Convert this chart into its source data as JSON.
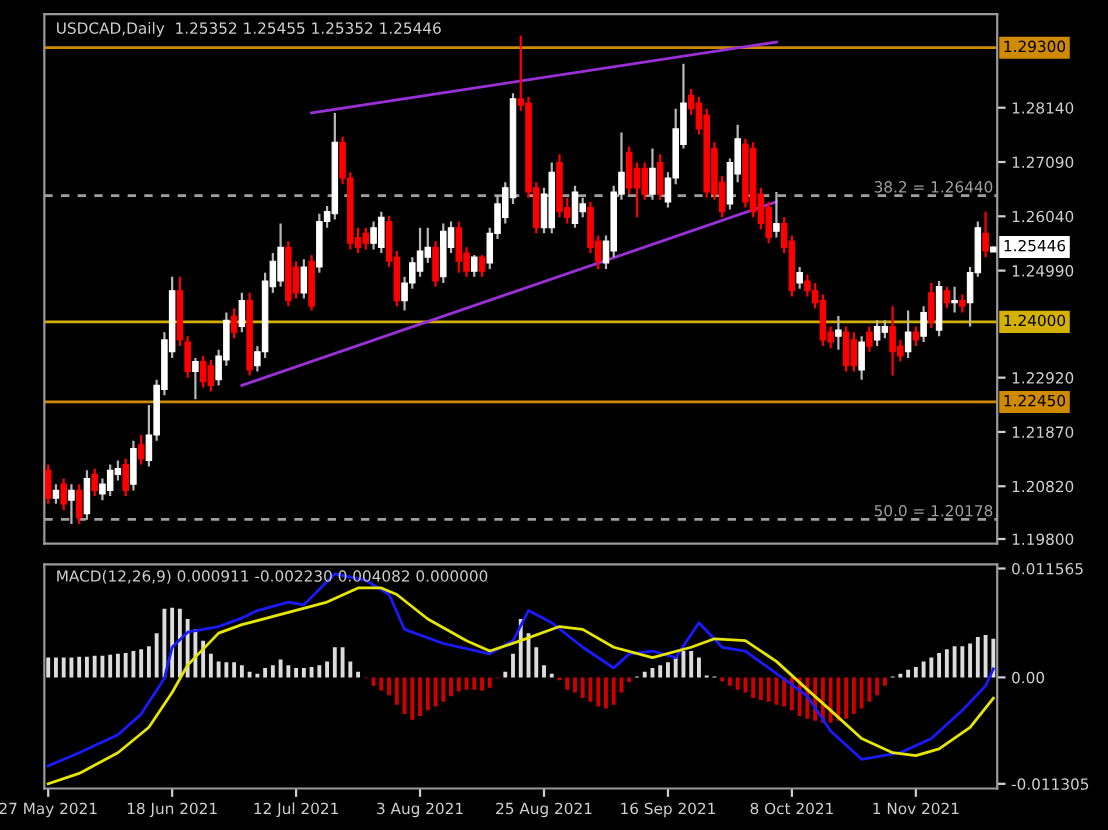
{
  "chart_data": [
    {
      "type": "candlestick",
      "title": "USDCAD,Daily  1.25352 1.25455 1.25352 1.25446",
      "categories": [
        null,
        null,
        null,
        null,
        null,
        null,
        null,
        null,
        null,
        null,
        null,
        null,
        null,
        null,
        null,
        null,
        null,
        null,
        null,
        null,
        null,
        null,
        null,
        null,
        null,
        null,
        null,
        null,
        null,
        null,
        null,
        null,
        null,
        null,
        null,
        null,
        null,
        null,
        null,
        null,
        null,
        null,
        null,
        null,
        null,
        null,
        null,
        null,
        null,
        null,
        null,
        null,
        null,
        null,
        null,
        null,
        null,
        null,
        null,
        null,
        null,
        null,
        null,
        null,
        null,
        null,
        null,
        null,
        null,
        null,
        null,
        null,
        null,
        null,
        null,
        null,
        null,
        null,
        null,
        null,
        null,
        null,
        null,
        null,
        null,
        null,
        null,
        null,
        null,
        null,
        null,
        null,
        null,
        null,
        null,
        null,
        null,
        null,
        null,
        null,
        null,
        null,
        null,
        null,
        null,
        null,
        null,
        null,
        null,
        null,
        null,
        null,
        null,
        null,
        null,
        null,
        null,
        null,
        null,
        null,
        null,
        null,
        null
      ],
      "ohlc": [
        [
          1.2113,
          1.2124,
          1.2048,
          1.2059
        ],
        [
          1.2059,
          1.2086,
          1.2048,
          1.2074
        ],
        [
          1.2086,
          1.2097,
          1.2036,
          1.2048
        ],
        [
          1.2055,
          1.2086,
          1.2009,
          1.2074
        ],
        [
          1.2074,
          1.2086,
          1.2009,
          1.2021
        ],
        [
          1.2029,
          1.2113,
          1.2017,
          1.2097
        ],
        [
          1.2105,
          1.2116,
          1.2063,
          1.2074
        ],
        [
          1.2067,
          1.2097,
          1.2055,
          1.2086
        ],
        [
          1.2074,
          1.2124,
          1.2063,
          1.2113
        ],
        [
          1.2105,
          1.2132,
          1.2093,
          1.2116
        ],
        [
          1.2124,
          1.2135,
          1.2063,
          1.2074
        ],
        [
          1.2086,
          1.217,
          1.2074,
          1.2155
        ],
        [
          1.2162,
          1.2181,
          1.2124,
          1.2135
        ],
        [
          1.2132,
          1.2239,
          1.212,
          1.2181
        ],
        [
          1.2181,
          1.2288,
          1.217,
          1.2277
        ],
        [
          1.2269,
          1.238,
          1.2258,
          1.2365
        ],
        [
          1.2342,
          1.2487,
          1.233,
          1.246
        ],
        [
          1.246,
          1.2487,
          1.2353,
          1.2365
        ],
        [
          1.2361,
          1.2372,
          1.2292,
          1.2304
        ],
        [
          1.2304,
          1.233,
          1.225,
          1.2323
        ],
        [
          1.2323,
          1.2334,
          1.2273,
          1.2284
        ],
        [
          1.2315,
          1.2326,
          1.2265,
          1.2277
        ],
        [
          1.2288,
          1.2346,
          1.2277,
          1.2334
        ],
        [
          1.2326,
          1.2418,
          1.2315,
          1.2403
        ],
        [
          1.2411,
          1.2426,
          1.2368,
          1.238
        ],
        [
          1.2391,
          1.2456,
          1.238,
          1.2441
        ],
        [
          1.2441,
          1.2456,
          1.2296,
          1.2307
        ],
        [
          1.2315,
          1.2353,
          1.2304,
          1.2342
        ],
        [
          1.2342,
          1.2495,
          1.233,
          1.2479
        ],
        [
          1.2468,
          1.2533,
          1.2456,
          1.2517
        ],
        [
          1.2479,
          1.259,
          1.2468,
          1.2544
        ],
        [
          1.2544,
          1.2556,
          1.243,
          1.2441
        ],
        [
          1.2506,
          1.2517,
          1.2445,
          1.2456
        ],
        [
          1.2456,
          1.2521,
          1.2445,
          1.2506
        ],
        [
          1.2517,
          1.2529,
          1.2422,
          1.243
        ],
        [
          1.2506,
          1.2609,
          1.2495,
          1.2594
        ],
        [
          1.2594,
          1.2624,
          1.2582,
          1.2613
        ],
        [
          1.2609,
          1.2804,
          1.2598,
          1.2747
        ],
        [
          1.2747,
          1.2758,
          1.2666,
          1.2678
        ],
        [
          1.2678,
          1.2689,
          1.254,
          1.2552
        ],
        [
          1.2563,
          1.2582,
          1.2533,
          1.2544
        ],
        [
          1.2571,
          1.2582,
          1.254,
          1.2552
        ],
        [
          1.2552,
          1.2594,
          1.254,
          1.2582
        ],
        [
          1.2544,
          1.2613,
          1.2533,
          1.2602
        ],
        [
          1.2594,
          1.2605,
          1.2506,
          1.2517
        ],
        [
          1.2525,
          1.2537,
          1.243,
          1.2441
        ],
        [
          1.2441,
          1.2487,
          1.2422,
          1.2475
        ],
        [
          1.2475,
          1.2525,
          1.2464,
          1.2514
        ],
        [
          1.2498,
          1.2582,
          1.2487,
          1.2537
        ],
        [
          1.2525,
          1.2582,
          1.2514,
          1.2544
        ],
        [
          1.2544,
          1.2556,
          1.2468,
          1.2479
        ],
        [
          1.2487,
          1.259,
          1.2475,
          1.2575
        ],
        [
          1.2544,
          1.2594,
          1.2533,
          1.2582
        ],
        [
          1.2582,
          1.2594,
          1.2495,
          1.2517
        ],
        [
          1.2533,
          1.2544,
          1.2487,
          1.2498
        ],
        [
          1.2498,
          1.2529,
          1.2487,
          1.2525
        ],
        [
          1.2525,
          1.2529,
          1.2487,
          1.2498
        ],
        [
          1.2514,
          1.2582,
          1.2502,
          1.2571
        ],
        [
          1.2571,
          1.2644,
          1.256,
          1.2628
        ],
        [
          1.2602,
          1.267,
          1.259,
          1.2659
        ],
        [
          1.264,
          1.2842,
          1.2628,
          1.2831
        ],
        [
          1.2831,
          1.2953,
          1.2808,
          1.2819
        ],
        [
          1.2823,
          1.2835,
          1.264,
          1.2651
        ],
        [
          1.2659,
          1.267,
          1.2571,
          1.2582
        ],
        [
          1.2582,
          1.2659,
          1.2571,
          1.2647
        ],
        [
          1.2582,
          1.2708,
          1.2571,
          1.2689
        ],
        [
          1.2708,
          1.2724,
          1.2602,
          1.2613
        ],
        [
          1.2621,
          1.264,
          1.259,
          1.2602
        ],
        [
          1.259,
          1.2663,
          1.2582,
          1.2651
        ],
        [
          1.2613,
          1.264,
          1.2602,
          1.2628
        ],
        [
          1.2621,
          1.2632,
          1.2533,
          1.2544
        ],
        [
          1.2556,
          1.2567,
          1.2502,
          1.2517
        ],
        [
          1.2514,
          1.2567,
          1.2502,
          1.2556
        ],
        [
          1.2537,
          1.2663,
          1.2525,
          1.2651
        ],
        [
          1.2647,
          1.2766,
          1.2636,
          1.2689
        ],
        [
          1.2728,
          1.2739,
          1.2647,
          1.2659
        ],
        [
          1.2697,
          1.2708,
          1.2602,
          1.2659
        ],
        [
          1.2697,
          1.2708,
          1.2636,
          1.2647
        ],
        [
          1.2647,
          1.2735,
          1.2636,
          1.2697
        ],
        [
          1.2708,
          1.2724,
          1.2636,
          1.2647
        ],
        [
          1.2632,
          1.2689,
          1.2621,
          1.2678
        ],
        [
          1.2678,
          1.2812,
          1.2666,
          1.2773
        ],
        [
          1.2743,
          1.2899,
          1.2735,
          1.2823
        ],
        [
          1.2838,
          1.285,
          1.28,
          1.2812
        ],
        [
          1.2823,
          1.2835,
          1.2762,
          1.2773
        ],
        [
          1.28,
          1.2812,
          1.264,
          1.2651
        ],
        [
          1.2735,
          1.2747,
          1.2636,
          1.2647
        ],
        [
          1.267,
          1.2682,
          1.2602,
          1.2613
        ],
        [
          1.2628,
          1.2716,
          1.2617,
          1.2708
        ],
        [
          1.2686,
          1.2781,
          1.267,
          1.2754
        ],
        [
          1.2743,
          1.2754,
          1.2621,
          1.2632
        ],
        [
          1.2735,
          1.2747,
          1.2602,
          1.2613
        ],
        [
          1.2647,
          1.2659,
          1.2579,
          1.259
        ],
        [
          1.2621,
          1.2632,
          1.2552,
          1.2563
        ],
        [
          1.2575,
          1.2651,
          1.2563,
          1.259
        ],
        [
          1.259,
          1.2602,
          1.2533,
          1.2544
        ],
        [
          1.2556,
          1.2567,
          1.2449,
          1.246
        ],
        [
          1.2475,
          1.2506,
          1.2464,
          1.2495
        ],
        [
          1.2479,
          1.2491,
          1.2449,
          1.246
        ],
        [
          1.246,
          1.2475,
          1.2426,
          1.2437
        ],
        [
          1.2441,
          1.2453,
          1.2353,
          1.2365
        ],
        [
          1.238,
          1.2391,
          1.2349,
          1.2361
        ],
        [
          1.2372,
          1.2411,
          1.2346,
          1.2384
        ],
        [
          1.238,
          1.2391,
          1.2304,
          1.2315
        ],
        [
          1.2365,
          1.238,
          1.2304,
          1.2315
        ],
        [
          1.2307,
          1.2372,
          1.2288,
          1.2361
        ],
        [
          1.238,
          1.2391,
          1.2342,
          1.2353
        ],
        [
          1.2365,
          1.2403,
          1.2353,
          1.2391
        ],
        [
          1.238,
          1.2403,
          1.2368,
          1.2391
        ],
        [
          1.2391,
          1.243,
          1.2296,
          1.2342
        ],
        [
          1.2353,
          1.2365,
          1.2323,
          1.2334
        ],
        [
          1.2342,
          1.2422,
          1.233,
          1.238
        ],
        [
          1.238,
          1.2391,
          1.2353,
          1.2365
        ],
        [
          1.2372,
          1.243,
          1.2361,
          1.2418
        ],
        [
          1.2456,
          1.2475,
          1.2388,
          1.2399
        ],
        [
          1.2384,
          1.2479,
          1.2372,
          1.2468
        ],
        [
          1.246,
          1.2468,
          1.2426,
          1.2437
        ],
        [
          1.2437,
          1.2468,
          1.2418,
          1.2441
        ],
        [
          1.2441,
          1.2453,
          1.2418,
          1.243
        ],
        [
          1.2437,
          1.2506,
          1.2391,
          1.2495
        ],
        [
          1.2495,
          1.2594,
          1.2487,
          1.2582
        ],
        [
          1.2571,
          1.2613,
          1.2525,
          1.2537
        ],
        [
          1.25352,
          1.25455,
          1.25352,
          1.25446
        ]
      ],
      "series": [
        {
          "type": "line",
          "color": "#9b30d9",
          "values": [
            null,
            null,
            null,
            null,
            null,
            null,
            null,
            null,
            null,
            null,
            null,
            null,
            null,
            null,
            null,
            null,
            null,
            null,
            null,
            null,
            null,
            null,
            null,
            null,
            null,
            null,
            null,
            null,
            null,
            null,
            null,
            null,
            null,
            null,
            1.2804,
            null,
            null,
            null,
            null,
            null,
            null,
            null,
            null,
            null,
            null,
            null,
            null,
            null,
            null,
            null,
            null,
            null,
            null,
            null,
            null,
            null,
            null,
            null,
            null,
            null,
            null,
            null,
            null,
            null,
            null,
            null,
            null,
            null,
            null,
            null,
            null,
            null,
            null,
            null,
            null,
            null,
            null,
            null,
            null,
            null,
            null,
            null,
            null,
            null,
            null,
            null,
            null,
            null,
            null,
            null,
            null,
            null,
            null,
            null,
            1.2941,
            null,
            null,
            null,
            null,
            null,
            null,
            null,
            null,
            null,
            null,
            null,
            null,
            null,
            null,
            null,
            null,
            null,
            null,
            null,
            null,
            null,
            null,
            null,
            null,
            null,
            null,
            null,
            null
          ]
        },
        {
          "type": "line",
          "color": "#9b30d9",
          "values": [
            null,
            null,
            null,
            null,
            null,
            null,
            null,
            null,
            null,
            null,
            null,
            null,
            null,
            null,
            null,
            null,
            null,
            null,
            null,
            null,
            null,
            null,
            null,
            null,
            null,
            1.2277,
            null,
            null,
            null,
            null,
            null,
            null,
            null,
            null,
            null,
            null,
            null,
            null,
            null,
            null,
            null,
            null,
            null,
            null,
            null,
            null,
            null,
            null,
            null,
            null,
            null,
            null,
            null,
            null,
            null,
            null,
            null,
            null,
            null,
            null,
            null,
            null,
            null,
            null,
            null,
            null,
            null,
            null,
            null,
            null,
            null,
            null,
            null,
            null,
            null,
            null,
            null,
            null,
            null,
            null,
            null,
            null,
            null,
            null,
            null,
            null,
            null,
            null,
            null,
            null,
            null,
            null,
            null,
            null,
            1.2632,
            null,
            null,
            null,
            null,
            null,
            null,
            null,
            null,
            null,
            null,
            null,
            null,
            null,
            null,
            null,
            null,
            null,
            null,
            null,
            null,
            null,
            null,
            null,
            null,
            null,
            null,
            null,
            null
          ]
        }
      ],
      "ylim": [
        1.1971,
        1.2995
      ],
      "yticks": [
        {
          "value": 1.198,
          "label": "1.19800"
        },
        {
          "value": 1.2082,
          "label": "1.20820"
        },
        {
          "value": 1.2187,
          "label": "1.21870"
        },
        {
          "value": 1.2292,
          "label": "1.22920"
        },
        {
          "value": 1.2499,
          "label": "1.24990"
        },
        {
          "value": 1.2604,
          "label": "1.26040"
        },
        {
          "value": 1.2709,
          "label": "1.27090"
        },
        {
          "value": 1.2814,
          "label": "1.28140"
        }
      ],
      "tick_labels": "y",
      "ref_lines": [
        {
          "axis": "y",
          "value": 1.293,
          "label": "1.29300",
          "color": "#d08a00",
          "line_style": "solid"
        },
        {
          "axis": "y",
          "value": 1.2644,
          "label": "38.2 = 1.26440",
          "color": "#a0a0a0",
          "line_style": "dashed"
        },
        {
          "axis": "y",
          "value": 1.24,
          "label": "1.24000",
          "color": "#d4b000",
          "line_style": "solid"
        },
        {
          "axis": "y",
          "value": 1.2245,
          "label": "1.22450",
          "color": "#d08a00",
          "line_style": "solid"
        },
        {
          "axis": "y",
          "value": 1.20178,
          "label": "50.0 = 1.20178",
          "color": "#a0a0a0",
          "line_style": "dashed"
        }
      ],
      "annotations": [
        "1.25446"
      ]
    },
    {
      "type": "bar",
      "title": "MACD(12,26,9) 0.000911 -0.002230 0.004082 0.000000",
      "categories": [
        "27 May 2021",
        null,
        null,
        null,
        null,
        null,
        null,
        null,
        null,
        null,
        null,
        null,
        null,
        null,
        null,
        null,
        "18 Jun 2021",
        null,
        null,
        null,
        null,
        null,
        null,
        null,
        null,
        null,
        null,
        null,
        null,
        null,
        null,
        null,
        "12 Jul 2021",
        null,
        null,
        null,
        null,
        null,
        null,
        null,
        null,
        null,
        null,
        null,
        null,
        null,
        null,
        null,
        "3 Aug 2021",
        null,
        null,
        null,
        null,
        null,
        null,
        null,
        null,
        null,
        null,
        null,
        null,
        null,
        null,
        null,
        "25 Aug 2021",
        null,
        null,
        null,
        null,
        null,
        null,
        null,
        null,
        null,
        null,
        null,
        null,
        null,
        null,
        null,
        "16 Sep 2021",
        null,
        null,
        null,
        null,
        null,
        null,
        null,
        null,
        null,
        null,
        null,
        null,
        null,
        null,
        null,
        "8 Oct 2021",
        null,
        null,
        null,
        null,
        null,
        null,
        null,
        null,
        null,
        null,
        null,
        null,
        null,
        null,
        null,
        "1 Nov 2021",
        null,
        null,
        null,
        null,
        null,
        null,
        null,
        null,
        null,
        null
      ],
      "series": [
        {
          "type": "bar",
          "values": [
            0.0021,
            0.0021,
            0.0021,
            0.0021,
            0.0022,
            0.0022,
            0.0023,
            0.0023,
            0.0024,
            0.0025,
            0.0026,
            0.0028,
            0.003,
            0.0033,
            0.0047,
            0.0073,
            0.0074,
            0.0073,
            0.0062,
            0.0051,
            0.0039,
            0.0025,
            0.0017,
            0.0016,
            0.0016,
            0.0013,
            0.0006,
            0.0004,
            0.001,
            0.0013,
            0.0019,
            0.0013,
            0.001,
            0.001,
            0.0011,
            0.0013,
            0.0017,
            0.0032,
            0.0032,
            0.0017,
            0.0006,
            -0.0001,
            -0.0009,
            -0.0014,
            -0.0019,
            -0.0029,
            -0.0039,
            -0.0045,
            -0.0041,
            -0.0035,
            -0.0031,
            -0.0026,
            -0.002,
            -0.0015,
            -0.0013,
            -0.0013,
            -0.0014,
            -0.0011,
            -0.0001,
            0.0006,
            0.0025,
            0.0062,
            0.0047,
            0.0032,
            0.0013,
            0.0004,
            -0.0003,
            -0.0013,
            -0.0016,
            -0.0022,
            -0.0026,
            -0.0031,
            -0.0033,
            -0.0029,
            -0.0016,
            -0.0005,
            0.0001,
            0.0006,
            0.001,
            0.0013,
            0.0016,
            0.0021,
            0.0028,
            0.0028,
            0.0021,
            0.0002,
            0.0001,
            -0.0004,
            -0.0009,
            -0.0013,
            -0.0016,
            -0.0022,
            -0.0024,
            -0.0026,
            -0.0029,
            -0.0031,
            -0.0035,
            -0.0041,
            -0.0044,
            -0.0046,
            -0.0048,
            -0.0048,
            -0.0046,
            -0.0044,
            -0.0039,
            -0.0033,
            -0.0026,
            -0.0019,
            -0.0009,
            0.0001,
            0.0004,
            0.0008,
            0.0011,
            0.0017,
            0.0021,
            0.0026,
            0.003,
            0.0033,
            0.0033,
            0.0036,
            0.0043,
            0.0045,
            0.0041
          ],
          "colors": [
            "#dcdcdc",
            "#dcdcdc",
            "#dcdcdc",
            "#dcdcdc",
            "#dcdcdc",
            "#dcdcdc",
            "#dcdcdc",
            "#dcdcdc",
            "#dcdcdc",
            "#dcdcdc",
            "#dcdcdc",
            "#dcdcdc",
            "#dcdcdc",
            "#dcdcdc",
            "#dcdcdc",
            "#dcdcdc",
            "#dcdcdc",
            "#dcdcdc",
            "#dcdcdc",
            "#dcdcdc",
            "#dcdcdc",
            "#dcdcdc",
            "#dcdcdc",
            "#dcdcdc",
            "#dcdcdc",
            "#dcdcdc",
            "#dcdcdc",
            "#dcdcdc",
            "#dcdcdc",
            "#dcdcdc",
            "#dcdcdc",
            "#dcdcdc",
            "#dcdcdc",
            "#dcdcdc",
            "#dcdcdc",
            "#dcdcdc",
            "#dcdcdc",
            "#dcdcdc",
            "#dcdcdc",
            "#dcdcdc",
            "#dcdcdc",
            "#d00000",
            "#d00000",
            "#d00000",
            "#d00000",
            "#d00000",
            "#d00000",
            "#d00000",
            "#d00000",
            "#d00000",
            "#d00000",
            "#d00000",
            "#d00000",
            "#d00000",
            "#d00000",
            "#d00000",
            "#d00000",
            "#d00000",
            "#d00000",
            "#dcdcdc",
            "#dcdcdc",
            "#dcdcdc",
            "#dcdcdc",
            "#dcdcdc",
            "#dcdcdc",
            "#dcdcdc",
            "#d00000",
            "#d00000",
            "#d00000",
            "#d00000",
            "#d00000",
            "#d00000",
            "#d00000",
            "#d00000",
            "#d00000",
            "#d00000",
            "#dcdcdc",
            "#dcdcdc",
            "#dcdcdc",
            "#dcdcdc",
            "#dcdcdc",
            "#dcdcdc",
            "#dcdcdc",
            "#dcdcdc",
            "#dcdcdc",
            "#dcdcdc",
            "#dcdcdc",
            "#d00000",
            "#d00000",
            "#d00000",
            "#d00000",
            "#d00000",
            "#d00000",
            "#d00000",
            "#d00000",
            "#d00000",
            "#d00000",
            "#d00000",
            "#d00000",
            "#d00000",
            "#d00000",
            "#d00000",
            "#d00000",
            "#d00000",
            "#d00000",
            "#d00000",
            "#d00000",
            "#d00000",
            "#d00000",
            "#dcdcdc",
            "#dcdcdc",
            "#dcdcdc",
            "#dcdcdc",
            "#dcdcdc",
            "#dcdcdc",
            "#dcdcdc",
            "#dcdcdc",
            "#dcdcdc",
            "#dcdcdc",
            "#dcdcdc",
            "#dcdcdc",
            "#dcdcdc",
            "#dcdcdc"
          ]
        },
        {
          "type": "line",
          "color": "#1a1aff",
          "values": [
            -0.0094,
            null,
            null,
            null,
            -0.008,
            null,
            null,
            null,
            null,
            -0.0061,
            null,
            null,
            -0.0039,
            null,
            null,
            -0.0001,
            0.0032,
            null,
            0.0048,
            null,
            null,
            null,
            0.0054,
            null,
            null,
            0.0063,
            null,
            0.0071,
            null,
            null,
            null,
            0.008,
            null,
            0.0077,
            null,
            null,
            null,
            0.011,
            null,
            null,
            null,
            0.0103,
            null,
            null,
            0.0088,
            null,
            0.0051,
            null,
            null,
            null,
            null,
            0.0036,
            null,
            null,
            null,
            null,
            null,
            0.0025,
            null,
            null,
            0.0039,
            null,
            0.0071,
            null,
            null,
            0.0058,
            null,
            null,
            null,
            0.0032,
            null,
            null,
            null,
            0.001,
            null,
            0.0025,
            null,
            null,
            0.0028,
            null,
            null,
            0.0021,
            null,
            null,
            0.0058,
            null,
            null,
            0.0032,
            null,
            null,
            0.0028,
            null,
            null,
            0.001,
            null,
            null,
            null,
            null,
            -0.002,
            null,
            null,
            -0.0057,
            null,
            null,
            null,
            -0.0087,
            null,
            null,
            null,
            null,
            -0.008,
            null,
            null,
            null,
            -0.0065,
            null,
            null,
            null,
            -0.0035,
            null,
            null,
            -0.0009,
            0.0009
          ]
        },
        {
          "type": "line",
          "color": "#e6e600",
          "values": [
            -0.0113,
            null,
            null,
            null,
            -0.0102,
            null,
            null,
            null,
            null,
            -0.008,
            null,
            null,
            null,
            -0.0053,
            null,
            null,
            -0.0016,
            null,
            0.0013,
            null,
            null,
            null,
            0.0047,
            null,
            null,
            0.0056,
            null,
            null,
            null,
            null,
            null,
            0.0069,
            null,
            null,
            null,
            null,
            0.008,
            null,
            null,
            null,
            0.0095,
            null,
            null,
            0.0095,
            null,
            0.0088,
            null,
            null,
            null,
            0.0062,
            null,
            null,
            null,
            null,
            0.0039,
            null,
            null,
            0.0028,
            null,
            null,
            null,
            0.0039,
            null,
            null,
            null,
            null,
            0.0054,
            null,
            null,
            0.0051,
            null,
            null,
            null,
            0.0032,
            null,
            null,
            null,
            null,
            0.0021,
            null,
            null,
            null,
            null,
            0.0032,
            null,
            null,
            0.0041,
            null,
            null,
            null,
            0.0039,
            null,
            null,
            null,
            0.0017,
            null,
            null,
            null,
            -0.0013,
            null,
            null,
            -0.0035,
            null,
            null,
            null,
            -0.0065,
            null,
            null,
            null,
            -0.008,
            null,
            null,
            -0.0083,
            null,
            null,
            -0.0076,
            null,
            null,
            null,
            -0.0053,
            null,
            null,
            -0.0022
          ]
        }
      ],
      "ylim": [
        -0.0118,
        0.012
      ],
      "yticks": [
        {
          "value": 0.011565,
          "label": "0.011565"
        },
        {
          "value": 0.0,
          "label": "0.00"
        },
        {
          "value": -0.011305,
          "label": "-0.011305"
        }
      ]
    }
  ]
}
